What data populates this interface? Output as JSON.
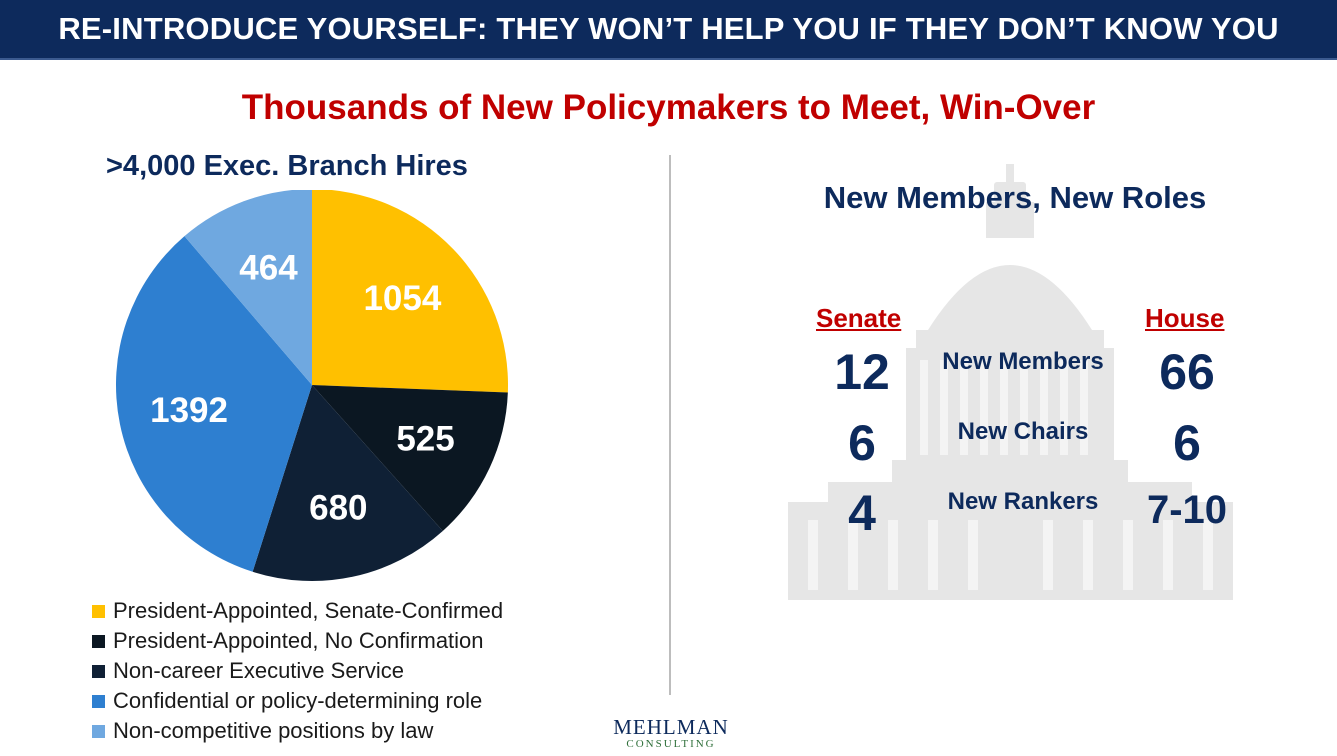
{
  "banner": {
    "title": "RE-INTRODUCE YOURSELF: THEY WON’T HELP YOU IF THEY DON’T KNOW YOU"
  },
  "subtitle": "Thousands of New Policymakers to Meet, Win-Over",
  "chart_data": {
    "type": "pie",
    "title": ">4,000 Exec. Branch Hires",
    "legend_position": "bottom",
    "slices": [
      {
        "label": "President-Appointed, Senate-Confirmed",
        "value": 1054,
        "color": "#ffc000"
      },
      {
        "label": "President-Appointed, No Confirmation",
        "value": 525,
        "color": "#0b1722"
      },
      {
        "label": "Non-career Executive Service",
        "value": 680,
        "color": "#0f2035"
      },
      {
        "label": "Confidential or policy-determining role",
        "value": 1392,
        "color": "#2e7fd0"
      },
      {
        "label": "Non-competitive positions by law",
        "value": 464,
        "color": "#6fa8e0"
      }
    ]
  },
  "congress": {
    "title": "New Members, New Roles",
    "senate_label": "Senate",
    "house_label": "House",
    "rows": [
      {
        "label": "New Members",
        "senate": "12",
        "house": "66"
      },
      {
        "label": "New Chairs",
        "senate": "6",
        "house": "6"
      },
      {
        "label": "New Rankers",
        "senate": "4",
        "house": "7-10"
      }
    ]
  },
  "logo": {
    "line1": "MEHLMAN",
    "line2": "CONSULTING"
  },
  "icons": {
    "capitol": "capitol-building-watermark"
  }
}
